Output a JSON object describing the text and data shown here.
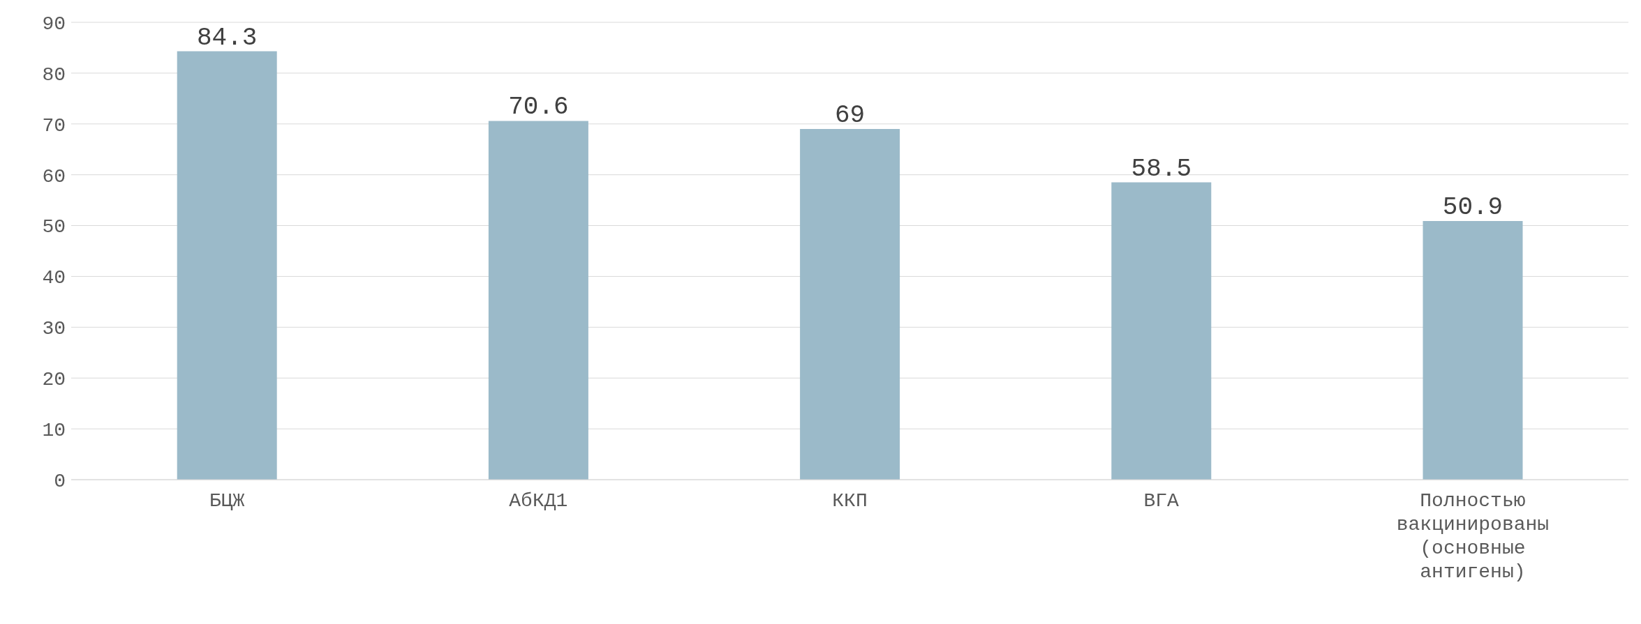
{
  "chart_data": {
    "type": "bar",
    "categories": [
      "БЦЖ",
      "АбКД1",
      "ККП",
      "ВГА",
      "Полностью вакцинированы (основные антигены)"
    ],
    "values": [
      84.3,
      70.6,
      69,
      58.5,
      50.9
    ],
    "color": "#9bbac9",
    "ylim": [
      0,
      90
    ],
    "yticks": [
      0,
      10,
      20,
      30,
      40,
      50,
      60,
      70,
      80,
      90
    ],
    "grid": "y",
    "data_labels": true,
    "legend": false
  }
}
